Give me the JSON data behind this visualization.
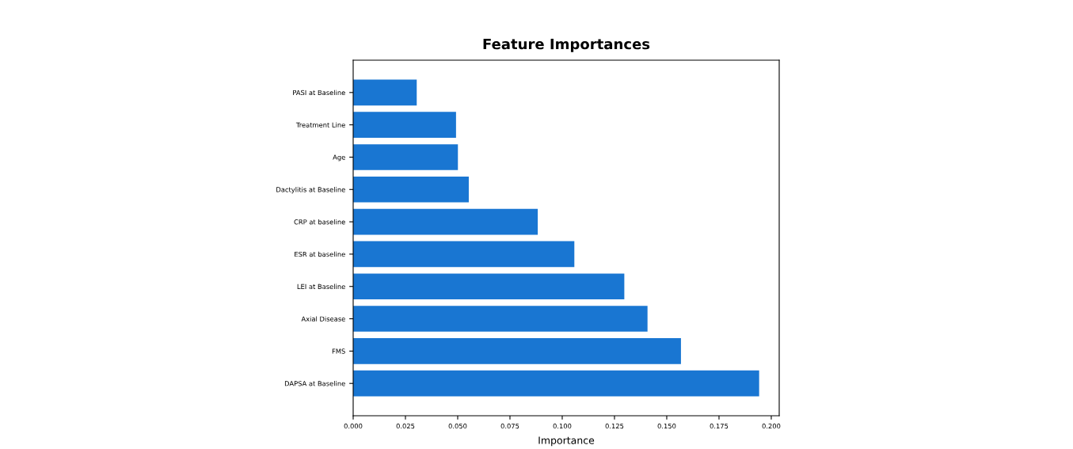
{
  "chart_data": {
    "type": "bar",
    "orientation": "horizontal",
    "title": "Feature Importances",
    "xlabel": "Importance",
    "categories": [
      "PASI at Baseline",
      "Treatment Line",
      "Age",
      "Dactylitis at Baseline",
      "CRP at baseline",
      "ESR at baseline",
      "LEI at Baseline",
      "Axial Disease",
      "FMS",
      "DAPSA at Baseline"
    ],
    "values": [
      0.0304,
      0.0492,
      0.0501,
      0.0553,
      0.0883,
      0.1058,
      0.1297,
      0.1408,
      0.1568,
      0.1942
    ],
    "color": "#1976d2",
    "xlim": [
      0,
      0.2038
    ],
    "xticks": [
      {
        "value": 0,
        "label": "0.000"
      },
      {
        "value": 0.025,
        "label": "0.025"
      },
      {
        "value": 0.05,
        "label": "0.050"
      },
      {
        "value": 0.075,
        "label": "0.075"
      },
      {
        "value": 0.1,
        "label": "0.100"
      },
      {
        "value": 0.125,
        "label": "0.125"
      },
      {
        "value": 0.15,
        "label": "0.150"
      },
      {
        "value": 0.175,
        "label": "0.175"
      },
      {
        "value": 0.2,
        "label": "0.200"
      }
    ],
    "grid": false
  }
}
